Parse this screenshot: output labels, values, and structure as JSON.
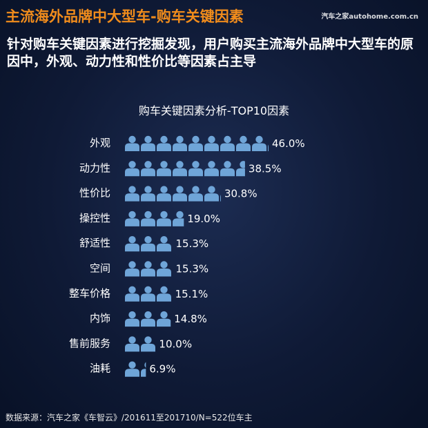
{
  "header": {
    "title": "主流海外品牌中大型车-购车关键因素",
    "brand": "汽车之家autohome.com.cn"
  },
  "subtitle": "针对购车关键因素进行挖掘发现，用户购买主流海外品牌中大型车的原因中，外观、动力性和性价比等因素占主导",
  "chart_title": "购车关键因素分析-TOP10因素",
  "footer": "数据来源：汽车之家《车智云》/201611至201710/N=522位车主",
  "colors": {
    "title": "#f08c1c",
    "icon": "#6fa5d8",
    "text": "#ffffff"
  },
  "chart_data": {
    "type": "bar",
    "orientation": "horizontal",
    "mark": "person-icon",
    "title": "购车关键因素分析-TOP10因素",
    "categories": [
      "外观",
      "动力性",
      "性价比",
      "操控性",
      "舒适性",
      "空间",
      "整车价格",
      "内饰",
      "售前服务",
      "油耗"
    ],
    "values": [
      46.0,
      38.5,
      30.8,
      19.0,
      15.3,
      15.3,
      15.1,
      14.8,
      10.0,
      6.9
    ],
    "value_labels": [
      "46.0%",
      "38.5%",
      "30.8%",
      "19.0%",
      "15.3%",
      "15.3%",
      "15.1%",
      "14.8%",
      "10.0%",
      "6.9%"
    ],
    "unit": "%"
  }
}
